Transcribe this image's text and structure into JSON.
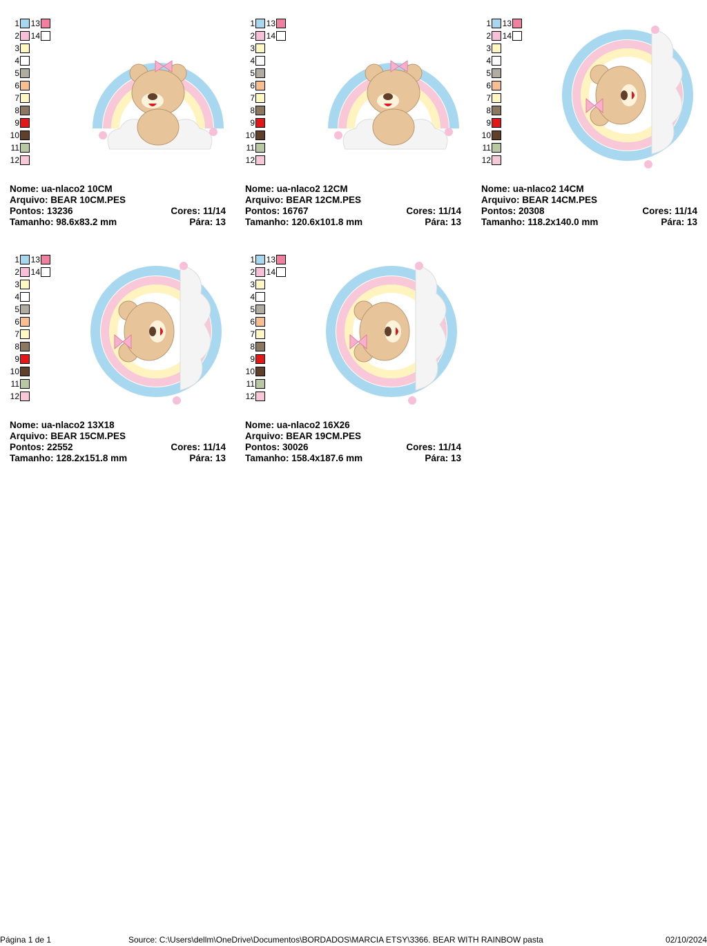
{
  "palette": [
    {
      "n": "1",
      "color": "#a8d8f0"
    },
    {
      "n": "2",
      "color": "#f8c0d8"
    },
    {
      "n": "3",
      "color": "#fff8c0"
    },
    {
      "n": "4",
      "color": "#ffffff"
    },
    {
      "n": "5",
      "color": "#b0aca0"
    },
    {
      "n": "6",
      "color": "#f8c090"
    },
    {
      "n": "7",
      "color": "#fff8c0"
    },
    {
      "n": "8",
      "color": "#8c7860"
    },
    {
      "n": "9",
      "color": "#e01818"
    },
    {
      "n": "10",
      "color": "#604028"
    },
    {
      "n": "11",
      "color": "#b8c8a0"
    },
    {
      "n": "12",
      "color": "#f8c8d8"
    },
    {
      "n": "13",
      "color": "#f080a0"
    },
    {
      "n": "14",
      "color": "#ffffff"
    }
  ],
  "labels": {
    "name": "Nome:",
    "file": "Arquivo:",
    "stitches": "Pontos:",
    "colors": "Cores:",
    "size": "Tamanho:",
    "stops": "Pára:"
  },
  "designs": [
    {
      "name": "ua-nlaco2 10CM",
      "file": "BEAR 10CM.PES",
      "stitches": "13236",
      "colors": "11/14",
      "size": "98.6x83.2 mm",
      "stops": "13",
      "orientation": "upright"
    },
    {
      "name": "ua-nlaco2 12CM",
      "file": "BEAR 12CM.PES",
      "stitches": "16767",
      "colors": "11/14",
      "size": "120.6x101.8 mm",
      "stops": "13",
      "orientation": "upright"
    },
    {
      "name": "ua-nlaco2 14CM",
      "file": "BEAR 14CM.PES",
      "stitches": "20308",
      "colors": "11/14",
      "size": "118.2x140.0 mm",
      "stops": "13",
      "orientation": "rotated"
    },
    {
      "name": "ua-nlaco2 13X18",
      "file": "BEAR 15CM.PES",
      "stitches": "22552",
      "colors": "11/14",
      "size": "128.2x151.8 mm",
      "stops": "13",
      "orientation": "rotated"
    },
    {
      "name": "ua-nlaco2 16X26",
      "file": "BEAR 19CM.PES",
      "stitches": "30026",
      "colors": "11/14",
      "size": "158.4x187.6 mm",
      "stops": "13",
      "orientation": "rotated"
    }
  ],
  "footer": {
    "page": "Página 1 de 1",
    "source": "Source: C:\\Users\\dellm\\OneDrive\\Documentos\\BORDADOS\\MARCIA ETSY\\3366. BEAR WITH RAINBOW pasta",
    "date": "02/10/2024"
  }
}
